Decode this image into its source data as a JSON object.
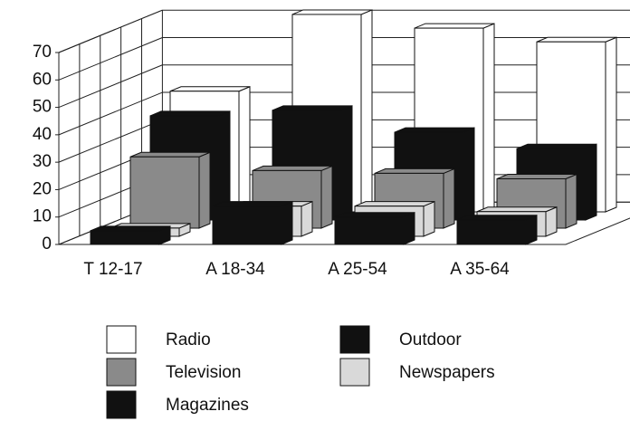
{
  "chart_data": {
    "type": "bar3d",
    "categories": [
      "T 12-17",
      "A 18-34",
      "A 25-54",
      "A 35-64"
    ],
    "series": [
      {
        "name": "Radio",
        "color": "#ffffff",
        "values": [
          44,
          72,
          67,
          62
        ]
      },
      {
        "name": "Outdoor",
        "color": "#111111",
        "values": [
          38,
          40,
          32,
          26
        ]
      },
      {
        "name": "Television",
        "color": "#8a8a8a",
        "values": [
          26,
          21,
          20,
          18
        ]
      },
      {
        "name": "Newspapers",
        "color": "#d9d9d9",
        "values": [
          3,
          11,
          11,
          9
        ]
      },
      {
        "name": "Magazines",
        "color": "#111111",
        "values": [
          5,
          14,
          10,
          9
        ]
      }
    ],
    "ylim": [
      0,
      70
    ],
    "yticks": [
      0,
      10,
      20,
      30,
      40,
      50,
      60,
      70
    ],
    "grid": true
  }
}
